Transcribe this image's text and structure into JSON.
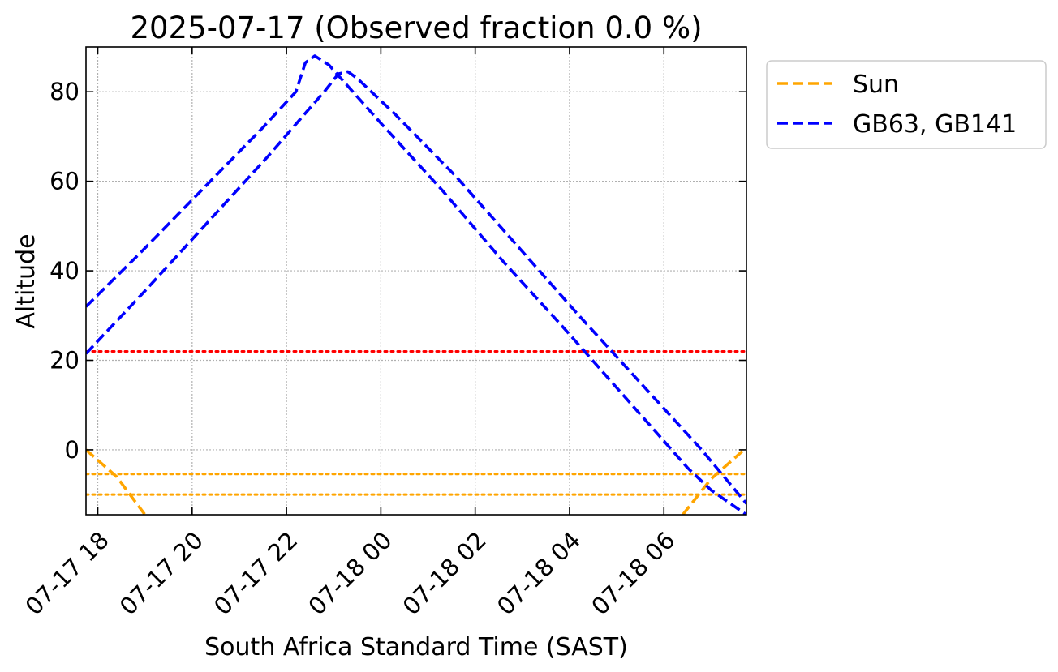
{
  "chart_data": {
    "type": "line",
    "title": "2025-07-17 (Observed fraction 0.0 %)",
    "xlabel": "South Africa Standard Time (SAST)",
    "ylabel": "Altitude",
    "x_unit": "hours relative to 2025-07-17 00:00 SAST",
    "xlim": [
      17.75,
      31.75
    ],
    "ylim": [
      -14.5,
      90
    ],
    "grid": true,
    "legend_position": "outside-top-right",
    "x_ticks": [
      {
        "value": 18,
        "label": "07-17 18"
      },
      {
        "value": 20,
        "label": "07-17 20"
      },
      {
        "value": 22,
        "label": "07-17 22"
      },
      {
        "value": 24,
        "label": "07-18 00"
      },
      {
        "value": 26,
        "label": "07-18 02"
      },
      {
        "value": 28,
        "label": "07-18 04"
      },
      {
        "value": 30,
        "label": "07-18 06"
      }
    ],
    "y_ticks": [
      {
        "value": 0,
        "label": "0"
      },
      {
        "value": 20,
        "label": "20"
      },
      {
        "value": 40,
        "label": "40"
      },
      {
        "value": 60,
        "label": "60"
      },
      {
        "value": 80,
        "label": "80"
      }
    ],
    "series": [
      {
        "name": "Sun",
        "color": "#ffa500",
        "style": "dashed",
        "segments": [
          {
            "x": [
              17.75,
              18.4,
              19.0
            ],
            "y": [
              0,
              -6,
              -14.5
            ]
          },
          {
            "x": [
              30.4,
              31.0,
              31.75
            ],
            "y": [
              -14.5,
              -6.5,
              0.5
            ]
          }
        ]
      },
      {
        "name": "GB63, GB141",
        "color": "#0000ff",
        "style": "dashed",
        "legend_group": "GB63, GB141",
        "segments": [
          {
            "x": [
              17.75,
              18.9,
              20.2,
              21.5,
              22.2,
              22.4,
              22.6,
              22.9,
              24.0,
              25.3,
              26.6,
              27.9,
              29.2,
              30.5,
              31.0,
              31.75
            ],
            "y": [
              32,
              44,
              58,
              72,
              80,
              86.5,
              88,
              86,
              73,
              58,
              42,
              27,
              11.5,
              -4,
              -9,
              -14.5
            ]
          }
        ]
      },
      {
        "name": "GB63, GB141",
        "color": "#0000ff",
        "style": "dashed",
        "legend_group": "GB63, GB141",
        "segments": [
          {
            "x": [
              17.75,
              19.0,
              20.3,
              21.6,
              22.3,
              22.8,
              23.1,
              23.3,
              23.5,
              24.3,
              25.6,
              26.9,
              28.2,
              29.5,
              30.8,
              31.75
            ],
            "y": [
              21.5,
              35.5,
              50.5,
              65.5,
              74,
              80,
              84,
              84.5,
              83,
              75,
              61,
              45.5,
              30,
              15,
              0,
              -12
            ]
          }
        ]
      }
    ],
    "reference_lines": [
      {
        "y": 22,
        "color": "#ff0000",
        "style": "dotted"
      },
      {
        "y": -5.4,
        "color": "#ffa500",
        "style": "dotted"
      },
      {
        "y": -10,
        "color": "#ffa500",
        "style": "dotted"
      }
    ],
    "legend": [
      {
        "label": "Sun",
        "color": "#ffa500"
      },
      {
        "label": "GB63, GB141",
        "color": "#0000ff"
      }
    ]
  }
}
